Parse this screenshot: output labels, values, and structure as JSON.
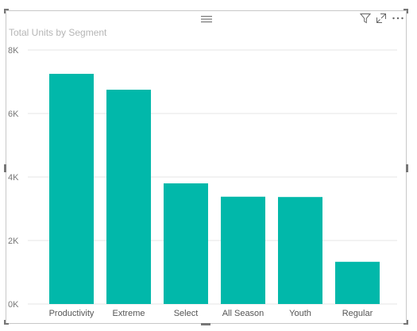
{
  "visual": {
    "title": "Total Units by Segment",
    "toolbar": {
      "filter_icon": "filter-icon",
      "focus_icon": "focus-mode-icon",
      "more_icon": "more-options-icon"
    }
  },
  "chart_data": {
    "type": "bar",
    "title": "Total Units by Segment",
    "categories": [
      "Productivity",
      "Extreme",
      "Select",
      "All Season",
      "Youth",
      "Regular"
    ],
    "values": [
      7250,
      6750,
      3800,
      3380,
      3370,
      1330
    ],
    "ylim": [
      0,
      8000
    ],
    "yticks": [
      0,
      2000,
      4000,
      6000,
      8000
    ],
    "ytick_labels": [
      "0K",
      "2K",
      "4K",
      "6K",
      "8K"
    ],
    "grid": true,
    "legend": "none",
    "colors": {
      "bar": "#01b8aa",
      "grid": "#e6e6e6"
    }
  }
}
